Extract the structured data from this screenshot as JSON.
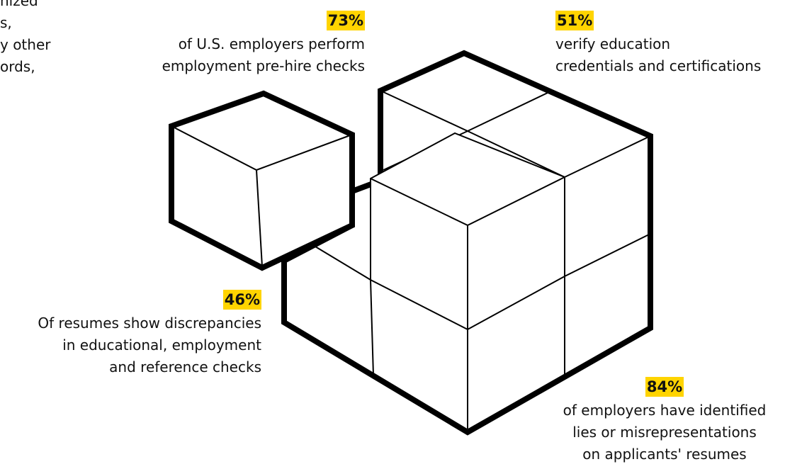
{
  "fragment": {
    "lines": [
      "nized",
      "s,",
      "y other",
      "ords,"
    ]
  },
  "stats": [
    {
      "percent": "73%",
      "lines": [
        "of U.S. employers perform",
        "employment pre-hire checks"
      ]
    },
    {
      "percent": "51%",
      "lines": [
        "verify education",
        "credentials and certifications"
      ]
    },
    {
      "percent": "46%",
      "lines": [
        "Of resumes show discrepancies",
        "in educational, employment",
        "and reference checks"
      ]
    },
    {
      "percent": "84%",
      "lines": [
        "of employers have identified",
        "lies or misrepresentations",
        "on applicants' resumes"
      ]
    }
  ]
}
